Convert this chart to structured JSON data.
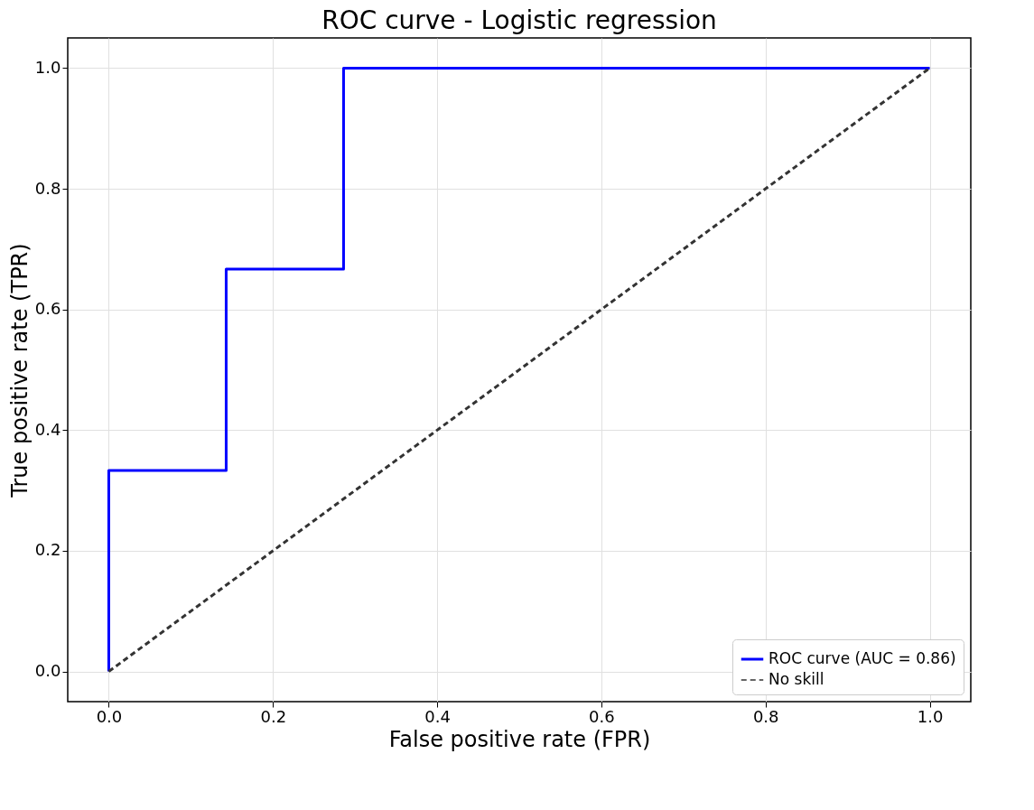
{
  "chart_data": {
    "type": "line",
    "title": "ROC curve - Logistic regression",
    "xlabel": "False positive rate (FPR)",
    "ylabel": "True positive rate (TPR)",
    "xlim": [
      -0.05,
      1.05
    ],
    "ylim": [
      -0.05,
      1.05
    ],
    "xticks": [
      {
        "value": 0,
        "label": "0.0"
      },
      0.2,
      0.4,
      0.6,
      0.8,
      {
        "value": 1,
        "label": "1.0"
      }
    ],
    "yticks": [
      {
        "value": 0,
        "label": "0.0"
      },
      0.2,
      0.4,
      0.6,
      0.8,
      {
        "value": 1,
        "label": "1.0"
      }
    ],
    "series": [
      {
        "name": "ROC curve (AUC = 0.86)",
        "color": "#0000ff",
        "line_style": "solid",
        "x": [
          0,
          0,
          0.143,
          0.143,
          0.286,
          0.286,
          1
        ],
        "values": [
          0,
          0.333,
          0.333,
          0.667,
          0.667,
          1,
          1
        ]
      },
      {
        "name": "No skill",
        "color": "#333333",
        "line_style": "dashed",
        "x": [
          0,
          1
        ],
        "values": [
          0,
          1
        ]
      }
    ],
    "grid": true,
    "legend": "bottom right"
  }
}
